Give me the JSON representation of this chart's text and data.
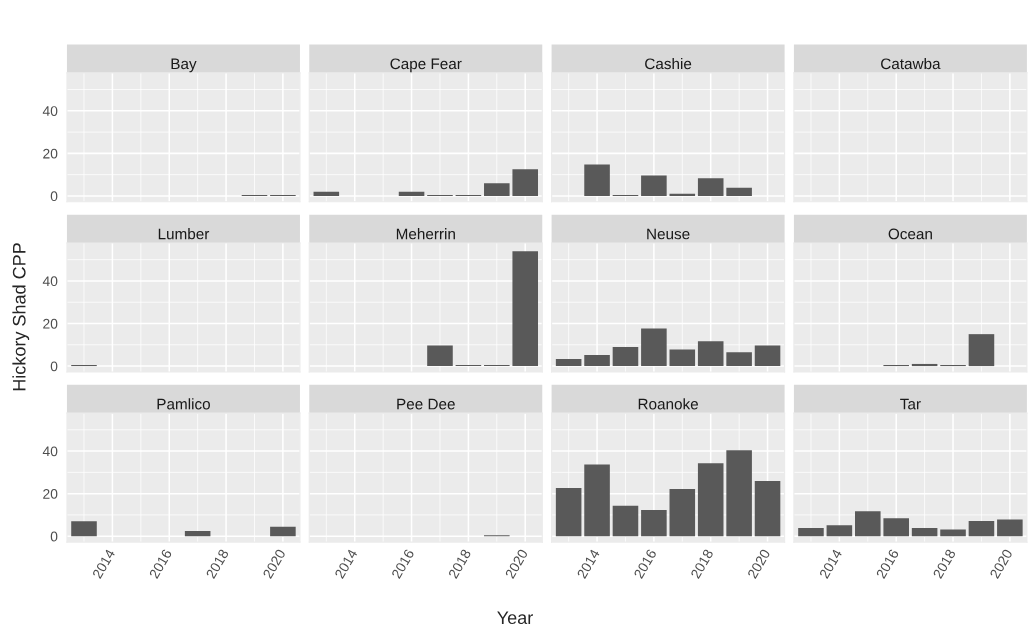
{
  "chart_data": [
    {
      "type": "bar",
      "title": "Bay",
      "x": [
        2019,
        2020
      ],
      "values": [
        0.5,
        0.5
      ],
      "color": "#595959",
      "xlim": [
        2012.4,
        2020.6
      ],
      "ylim": [
        -2.75,
        57.8
      ],
      "xticks": [
        2014,
        2016,
        2018,
        2020
      ],
      "yticks": [
        0,
        20,
        40
      ],
      "grid": true,
      "tick_labels": "y"
    },
    {
      "type": "bar",
      "title": "Cape Fear",
      "x": [
        2013,
        2016,
        2017,
        2018,
        2019,
        2020
      ],
      "values": [
        2,
        2,
        0.5,
        0.5,
        6,
        12.6
      ],
      "color": "#595959",
      "xlim": [
        2012.4,
        2020.6
      ],
      "ylim": [
        -2.75,
        57.8
      ],
      "xticks": [
        2014,
        2016,
        2018,
        2020
      ],
      "yticks": [
        0,
        20,
        40
      ],
      "grid": true,
      "tick_labels": false
    },
    {
      "type": "bar",
      "title": "Cashie",
      "x": [
        2014,
        2015,
        2016,
        2017,
        2018,
        2019
      ],
      "values": [
        14.8,
        0.5,
        9.6,
        1,
        8.3,
        3.8
      ],
      "color": "#595959",
      "xlim": [
        2012.4,
        2020.6
      ],
      "ylim": [
        -2.75,
        57.8
      ],
      "xticks": [
        2014,
        2016,
        2018,
        2020
      ],
      "yticks": [
        0,
        20,
        40
      ],
      "grid": true,
      "tick_labels": false
    },
    {
      "type": "bar",
      "title": "Catawba",
      "color": "#595959",
      "xlim": [
        2012.4,
        2020.6
      ],
      "ylim": [
        -2.75,
        57.8
      ],
      "xticks": [
        2014,
        2016,
        2018,
        2020
      ],
      "yticks": [
        0,
        20,
        40
      ],
      "grid": true,
      "tick_labels": false
    },
    {
      "type": "bar",
      "title": "Lumber",
      "ylabel": "Hickory Shad CPP",
      "x": [
        2013
      ],
      "values": [
        0.5
      ],
      "color": "#595959",
      "xlim": [
        2012.4,
        2020.6
      ],
      "ylim": [
        -2.75,
        57.8
      ],
      "xticks": [
        2014,
        2016,
        2018,
        2020
      ],
      "yticks": [
        0,
        20,
        40
      ],
      "grid": true,
      "tick_labels": "y"
    },
    {
      "type": "bar",
      "title": "Meherrin",
      "x": [
        2017,
        2018,
        2019,
        2020
      ],
      "values": [
        9.7,
        0.5,
        0.5,
        54
      ],
      "color": "#595959",
      "xlim": [
        2012.4,
        2020.6
      ],
      "ylim": [
        -2.75,
        57.8
      ],
      "xticks": [
        2014,
        2016,
        2018,
        2020
      ],
      "yticks": [
        0,
        20,
        40
      ],
      "grid": true,
      "tick_labels": false
    },
    {
      "type": "bar",
      "title": "Neuse",
      "x": [
        2013,
        2014,
        2015,
        2016,
        2017,
        2018,
        2019,
        2020
      ],
      "values": [
        3.3,
        5.2,
        9,
        17.6,
        7.8,
        11.7,
        6.5,
        9.7
      ],
      "color": "#595959",
      "xlim": [
        2012.4,
        2020.6
      ],
      "ylim": [
        -2.75,
        57.8
      ],
      "xticks": [
        2014,
        2016,
        2018,
        2020
      ],
      "yticks": [
        0,
        20,
        40
      ],
      "grid": true,
      "tick_labels": false
    },
    {
      "type": "bar",
      "title": "Ocean",
      "x": [
        2016,
        2017,
        2018,
        2019
      ],
      "values": [
        0.5,
        1,
        0.5,
        15
      ],
      "color": "#595959",
      "xlim": [
        2012.4,
        2020.6
      ],
      "ylim": [
        -2.75,
        57.8
      ],
      "xticks": [
        2014,
        2016,
        2018,
        2020
      ],
      "yticks": [
        0,
        20,
        40
      ],
      "grid": true,
      "tick_labels": false
    },
    {
      "type": "bar",
      "title": "Pamlico",
      "x": [
        2013,
        2017,
        2020
      ],
      "values": [
        7,
        2.5,
        4.5
      ],
      "color": "#595959",
      "xlim": [
        2012.4,
        2020.6
      ],
      "ylim": [
        -2.75,
        57.8
      ],
      "xticks": [
        2014,
        2016,
        2018,
        2020
      ],
      "yticks": [
        0,
        20,
        40
      ],
      "grid": true
    },
    {
      "type": "bar",
      "title": "Pee Dee",
      "xlabel": "Year",
      "x": [
        2019
      ],
      "values": [
        0.5
      ],
      "color": "#595959",
      "xlim": [
        2012.4,
        2020.6
      ],
      "ylim": [
        -2.75,
        57.8
      ],
      "xticks": [
        2014,
        2016,
        2018,
        2020
      ],
      "yticks": [
        0,
        20,
        40
      ],
      "grid": true,
      "tick_labels": "x"
    },
    {
      "type": "bar",
      "title": "Roanoke",
      "x": [
        2013,
        2014,
        2015,
        2016,
        2017,
        2018,
        2019,
        2020
      ],
      "values": [
        22.7,
        33.7,
        14.3,
        12.3,
        22.2,
        34.3,
        40.4,
        25.9
      ],
      "color": "#595959",
      "xlim": [
        2012.4,
        2020.6
      ],
      "ylim": [
        -2.75,
        57.8
      ],
      "xticks": [
        2014,
        2016,
        2018,
        2020
      ],
      "yticks": [
        0,
        20,
        40
      ],
      "grid": true,
      "tick_labels": "x"
    },
    {
      "type": "bar",
      "title": "Tar",
      "x": [
        2013,
        2014,
        2015,
        2016,
        2017,
        2018,
        2019,
        2020
      ],
      "values": [
        3.9,
        5.2,
        11.7,
        8.4,
        3.9,
        3.2,
        7.1,
        7.8
      ],
      "color": "#595959",
      "xlim": [
        2012.4,
        2020.6
      ],
      "ylim": [
        -2.75,
        57.8
      ],
      "xticks": [
        2014,
        2016,
        2018,
        2020
      ],
      "yticks": [
        0,
        20,
        40
      ],
      "grid": true,
      "tick_labels": "x"
    }
  ]
}
